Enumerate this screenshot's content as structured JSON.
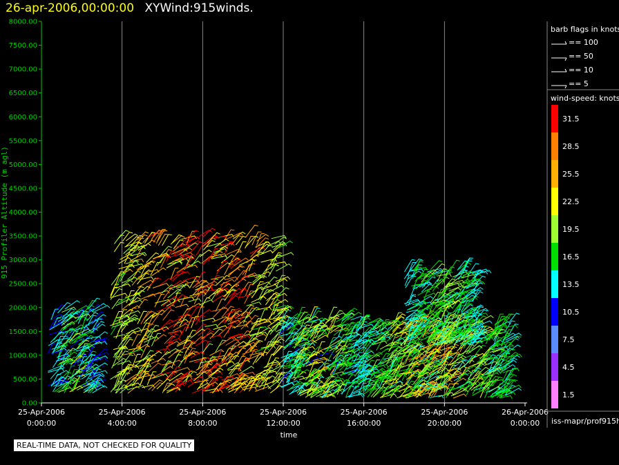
{
  "header": {
    "date": "26-apr-2006,00:00:00",
    "product": "XYWind:915winds."
  },
  "footer": {
    "quality_note": "REAL-TIME DATA, NOT CHECKED FOR QUALITY",
    "source": "iss-mapr/prof915h"
  },
  "legend": {
    "barb_title": "barb flags in knots",
    "barbs": [
      "== 100",
      "== 50",
      "== 10",
      "== 5"
    ],
    "speed_title": "wind-speed: knots",
    "speed_levels": [
      {
        "label": "31.5",
        "color": "#ff0000"
      },
      {
        "label": "28.5",
        "color": "#ff8000"
      },
      {
        "label": "25.5",
        "color": "#ffb000"
      },
      {
        "label": "22.5",
        "color": "#ffff00"
      },
      {
        "label": "19.5",
        "color": "#a0ff30"
      },
      {
        "label": "16.5",
        "color": "#00e000"
      },
      {
        "label": "13.5",
        "color": "#00ffff"
      },
      {
        "label": "10.5",
        "color": "#0000ff"
      },
      {
        "label": "7.5",
        "color": "#5a8cff"
      },
      {
        "label": "4.5",
        "color": "#9a30ff"
      },
      {
        "label": "1.5",
        "color": "#ff80ff"
      }
    ]
  },
  "chart_data": {
    "type": "scatter",
    "title": "26-apr-2006,00:00:00  XYWind:915winds.",
    "xlabel": "time",
    "ylabel": "915 Profiler Altitude (m agl)",
    "xlim": [
      0,
      24
    ],
    "ylim": [
      0,
      8000
    ],
    "x_ticks": [
      {
        "hour": 0,
        "label": [
          "25-Apr-2006",
          "0:00:00"
        ]
      },
      {
        "hour": 4,
        "label": [
          "25-Apr-2006",
          "4:00:00"
        ]
      },
      {
        "hour": 8,
        "label": [
          "25-Apr-2006",
          "8:00:00"
        ]
      },
      {
        "hour": 12,
        "label": [
          "25-Apr-2006",
          "12:00:00"
        ]
      },
      {
        "hour": 16,
        "label": [
          "25-Apr-2006",
          "16:00:00"
        ]
      },
      {
        "hour": 20,
        "label": [
          "25-Apr-2006",
          "20:00:00"
        ]
      },
      {
        "hour": 24,
        "label": [
          "26-Apr-2006",
          "0:00:00"
        ]
      }
    ],
    "y_ticks": [
      "0.00",
      "500.00",
      "1000.00",
      "1500.00",
      "2000.00",
      "2500.00",
      "3000.00",
      "3500.00",
      "4000.00",
      "4500.00",
      "5000.00",
      "5500.00",
      "6000.00",
      "6500.00",
      "7000.00",
      "7500.00",
      "8000.00"
    ],
    "vertical_grid": true,
    "series": [
      {
        "time_range_h": [
          0.3,
          2.7
        ],
        "altitude_range_m": [
          200,
          2000
        ],
        "speed_kt": [
          4,
          20
        ]
      },
      {
        "time_range_h": [
          3.4,
          11.8
        ],
        "altitude_range_m": [
          200,
          3500
        ],
        "speed_kt": [
          8,
          34
        ]
      },
      {
        "time_range_h": [
          11.8,
          15.5
        ],
        "altitude_range_m": [
          100,
          1800
        ],
        "speed_kt": [
          4,
          24
        ]
      },
      {
        "time_range_h": [
          15.5,
          23.2
        ],
        "altitude_range_m": [
          100,
          1700
        ],
        "speed_kt": [
          5,
          26
        ]
      },
      {
        "time_range_h": [
          18.0,
          21.5
        ],
        "altitude_range_m": [
          1200,
          2800
        ],
        "speed_kt": [
          8,
          20
        ]
      }
    ]
  }
}
